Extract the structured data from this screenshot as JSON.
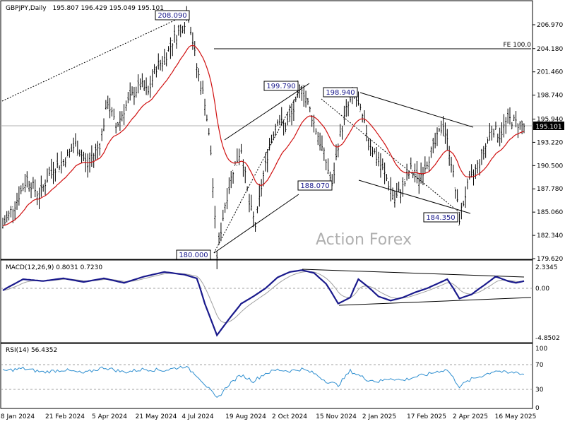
{
  "chart_data": {
    "type": "candlestick",
    "symbol_label": "GBPJPY,Daily",
    "ohlc_label": "195.807 196.429 195.049 195.101",
    "last_price": 195.101,
    "last_price_label": "195.101",
    "watermark": "Action Forex",
    "price_axis": {
      "range": [
        179.62,
        209.0
      ],
      "ticks": [
        "206.970",
        "204.180",
        "201.460",
        "198.740",
        "195.940",
        "193.220",
        "190.500",
        "187.780",
        "185.060",
        "182.340",
        "179.620"
      ]
    },
    "x_axis_labels": [
      "8 Jan 2024",
      "21 Feb 2024",
      "5 Apr 2024",
      "21 May 2024",
      "4 Jul 2024",
      "19 Aug 2024",
      "2 Oct 2024",
      "15 Nov 2024",
      "2 Jan 2025",
      "17 Feb 2025",
      "2 Apr 2025",
      "16 May 2025"
    ],
    "annotations": [
      {
        "label": "208.090",
        "value": 208.09
      },
      {
        "label": "199.790",
        "value": 199.79
      },
      {
        "label": "198.940",
        "value": 198.94
      },
      {
        "label": "188.070",
        "value": 188.07
      },
      {
        "label": "184.350",
        "value": 184.35
      },
      {
        "label": "180.000",
        "value": 180.0
      }
    ],
    "fe_level": {
      "label": "FE 100.0",
      "value": 204.3
    },
    "price_path": [
      [
        0,
        183.5
      ],
      [
        6,
        186
      ],
      [
        12,
        189
      ],
      [
        18,
        187
      ],
      [
        24,
        190
      ],
      [
        30,
        191
      ],
      [
        36,
        193
      ],
      [
        42,
        190.5
      ],
      [
        48,
        193
      ],
      [
        52,
        198
      ],
      [
        56,
        195
      ],
      [
        62,
        198
      ],
      [
        68,
        200
      ],
      [
        72,
        199
      ],
      [
        76,
        202
      ],
      [
        80,
        203
      ],
      [
        84,
        205
      ],
      [
        88,
        206.5
      ],
      [
        92,
        208.09
      ],
      [
        96,
        202
      ],
      [
        100,
        198
      ],
      [
        103,
        192
      ],
      [
        106,
        180.0
      ],
      [
        110,
        186
      ],
      [
        114,
        190
      ],
      [
        118,
        192.5
      ],
      [
        122,
        186
      ],
      [
        125,
        183.5
      ],
      [
        128,
        188
      ],
      [
        132,
        193
      ],
      [
        136,
        196
      ],
      [
        140,
        195
      ],
      [
        144,
        197
      ],
      [
        148,
        199.79
      ],
      [
        152,
        197
      ],
      [
        156,
        194
      ],
      [
        160,
        191
      ],
      [
        163,
        188.07
      ],
      [
        166,
        193
      ],
      [
        170,
        197
      ],
      [
        174,
        198.94
      ],
      [
        178,
        196
      ],
      [
        182,
        193
      ],
      [
        186,
        191
      ],
      [
        190,
        189
      ],
      [
        194,
        186.5
      ],
      [
        198,
        188
      ],
      [
        202,
        190
      ],
      [
        206,
        189
      ],
      [
        210,
        191
      ],
      [
        214,
        193
      ],
      [
        218,
        195.5
      ],
      [
        222,
        191
      ],
      [
        226,
        184.35
      ],
      [
        230,
        188
      ],
      [
        234,
        190
      ],
      [
        238,
        192
      ],
      [
        242,
        195
      ],
      [
        246,
        194
      ],
      [
        250,
        196
      ],
      [
        254,
        195.5
      ],
      [
        258,
        195.101
      ]
    ],
    "macd": {
      "label": "MACD(12,26,9) 0.8031 0.7230",
      "range": [
        -4.85,
        2.8
      ],
      "ticks": [
        "2.3345",
        "0.00",
        "-4.8502"
      ],
      "path": [
        [
          0,
          -0.2
        ],
        [
          10,
          1.0
        ],
        [
          20,
          0.8
        ],
        [
          30,
          1.1
        ],
        [
          40,
          0.7
        ],
        [
          50,
          1.1
        ],
        [
          60,
          0.6
        ],
        [
          70,
          1.3
        ],
        [
          80,
          1.8
        ],
        [
          90,
          1.5
        ],
        [
          96,
          1.1
        ],
        [
          100,
          -1.5
        ],
        [
          106,
          -4.6
        ],
        [
          112,
          -3.0
        ],
        [
          118,
          -1.5
        ],
        [
          124,
          -0.8
        ],
        [
          130,
          0.0
        ],
        [
          136,
          1.2
        ],
        [
          142,
          1.8
        ],
        [
          148,
          2.0
        ],
        [
          154,
          1.7
        ],
        [
          160,
          0.5
        ],
        [
          166,
          -1.5
        ],
        [
          172,
          -0.9
        ],
        [
          176,
          1.0
        ],
        [
          180,
          0.3
        ],
        [
          186,
          -0.8
        ],
        [
          192,
          -1.2
        ],
        [
          198,
          -0.9
        ],
        [
          204,
          -0.4
        ],
        [
          210,
          0.0
        ],
        [
          216,
          0.6
        ],
        [
          220,
          1.0
        ],
        [
          226,
          -1.0
        ],
        [
          232,
          -0.6
        ],
        [
          238,
          0.3
        ],
        [
          244,
          1.3
        ],
        [
          250,
          0.8
        ],
        [
          254,
          0.6
        ],
        [
          258,
          0.8
        ]
      ],
      "ylabel_range": [
        -4.8502,
        2.3345
      ]
    },
    "rsi": {
      "label": "RSI(14) 56.4352",
      "range": [
        0,
        100
      ],
      "ticks": [
        "100",
        "70",
        "30",
        "0"
      ],
      "levels": [
        70,
        30
      ],
      "path": [
        [
          0,
          62
        ],
        [
          10,
          66
        ],
        [
          20,
          60
        ],
        [
          30,
          64
        ],
        [
          40,
          58
        ],
        [
          50,
          68
        ],
        [
          60,
          60
        ],
        [
          70,
          65
        ],
        [
          80,
          63
        ],
        [
          90,
          70
        ],
        [
          96,
          55
        ],
        [
          100,
          40
        ],
        [
          106,
          15
        ],
        [
          112,
          40
        ],
        [
          118,
          55
        ],
        [
          124,
          45
        ],
        [
          130,
          58
        ],
        [
          136,
          64
        ],
        [
          142,
          62
        ],
        [
          148,
          65
        ],
        [
          154,
          58
        ],
        [
          160,
          45
        ],
        [
          166,
          38
        ],
        [
          172,
          62
        ],
        [
          176,
          55
        ],
        [
          180,
          48
        ],
        [
          186,
          44
        ],
        [
          192,
          50
        ],
        [
          198,
          46
        ],
        [
          204,
          52
        ],
        [
          210,
          56
        ],
        [
          216,
          62
        ],
        [
          220,
          64
        ],
        [
          226,
          36
        ],
        [
          232,
          48
        ],
        [
          238,
          55
        ],
        [
          244,
          63
        ],
        [
          250,
          58
        ],
        [
          254,
          60
        ],
        [
          258,
          56.4
        ]
      ]
    }
  }
}
